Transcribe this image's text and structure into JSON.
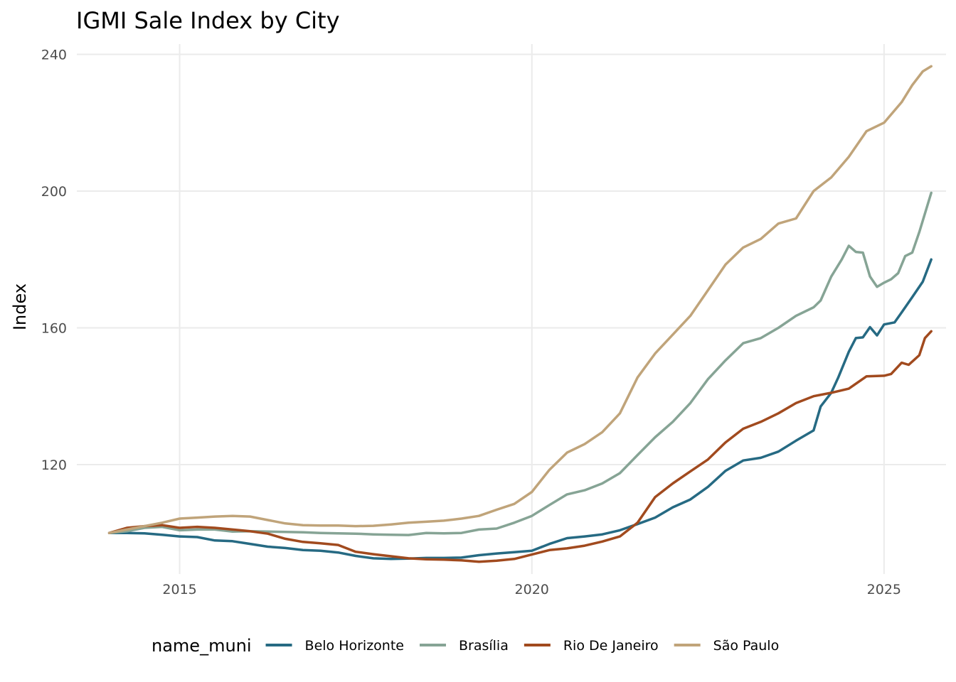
{
  "chart_data": {
    "type": "line",
    "title": "IGMI Sale Index by City",
    "xlabel": "",
    "ylabel": "Index",
    "xlim": [
      2013.54,
      2025.88
    ],
    "ylim": [
      88,
      243
    ],
    "x_ticks": [
      2015,
      2020,
      2025
    ],
    "x_tick_labels": [
      "2015",
      "2020",
      "2025"
    ],
    "y_ticks": [
      120,
      160,
      200,
      240
    ],
    "y_tick_labels": [
      "120",
      "160",
      "200",
      "240"
    ],
    "grid": true,
    "legend": {
      "title": "name_muni",
      "placement": "bottom"
    },
    "series": [
      {
        "name": "Belo Horizonte",
        "color": "#266a83",
        "points": [
          [
            2014.0,
            100.0
          ],
          [
            2014.25,
            100.0
          ],
          [
            2014.5,
            99.9
          ],
          [
            2014.75,
            99.5
          ],
          [
            2015.0,
            99.0
          ],
          [
            2015.25,
            98.8
          ],
          [
            2015.5,
            97.8
          ],
          [
            2015.75,
            97.6
          ],
          [
            2016.0,
            96.8
          ],
          [
            2016.25,
            96.0
          ],
          [
            2016.5,
            95.6
          ],
          [
            2016.75,
            95.0
          ],
          [
            2017.0,
            94.8
          ],
          [
            2017.25,
            94.3
          ],
          [
            2017.5,
            93.3
          ],
          [
            2017.75,
            92.6
          ],
          [
            2018.0,
            92.4
          ],
          [
            2018.25,
            92.5
          ],
          [
            2018.5,
            92.7
          ],
          [
            2018.75,
            92.7
          ],
          [
            2019.0,
            92.8
          ],
          [
            2019.25,
            93.5
          ],
          [
            2019.5,
            94.0
          ],
          [
            2019.75,
            94.4
          ],
          [
            2020.0,
            94.8
          ],
          [
            2020.25,
            96.8
          ],
          [
            2020.5,
            98.5
          ],
          [
            2020.75,
            99.0
          ],
          [
            2021.0,
            99.6
          ],
          [
            2021.25,
            100.8
          ],
          [
            2021.5,
            102.6
          ],
          [
            2021.75,
            104.5
          ],
          [
            2022.0,
            107.5
          ],
          [
            2022.25,
            109.8
          ],
          [
            2022.5,
            113.5
          ],
          [
            2022.75,
            118.2
          ],
          [
            2023.0,
            121.2
          ],
          [
            2023.25,
            122.0
          ],
          [
            2023.5,
            123.8
          ],
          [
            2023.75,
            127.0
          ],
          [
            2024.0,
            130.0
          ],
          [
            2024.1,
            137.0
          ],
          [
            2024.25,
            141.0
          ],
          [
            2024.35,
            145.5
          ],
          [
            2024.5,
            153.0
          ],
          [
            2024.6,
            157.0
          ],
          [
            2024.7,
            157.2
          ],
          [
            2024.8,
            160.2
          ],
          [
            2024.9,
            157.8
          ],
          [
            2025.0,
            161.0
          ],
          [
            2025.15,
            161.6
          ],
          [
            2025.25,
            164.5
          ],
          [
            2025.4,
            169.0
          ],
          [
            2025.55,
            173.5
          ],
          [
            2025.67,
            180.0
          ]
        ]
      },
      {
        "name": "Brasília",
        "color": "#86a495",
        "points": [
          [
            2014.0,
            100.0
          ],
          [
            2014.25,
            100.5
          ],
          [
            2014.5,
            101.5
          ],
          [
            2014.75,
            101.8
          ],
          [
            2015.0,
            100.8
          ],
          [
            2015.25,
            101.0
          ],
          [
            2015.5,
            101.0
          ],
          [
            2015.75,
            100.4
          ],
          [
            2016.0,
            100.5
          ],
          [
            2016.25,
            100.4
          ],
          [
            2016.5,
            100.3
          ],
          [
            2016.75,
            100.2
          ],
          [
            2017.0,
            100.0
          ],
          [
            2017.25,
            99.9
          ],
          [
            2017.5,
            99.8
          ],
          [
            2017.75,
            99.6
          ],
          [
            2018.0,
            99.5
          ],
          [
            2018.25,
            99.4
          ],
          [
            2018.5,
            100.0
          ],
          [
            2018.75,
            99.9
          ],
          [
            2019.0,
            100.0
          ],
          [
            2019.25,
            101.0
          ],
          [
            2019.5,
            101.3
          ],
          [
            2019.75,
            103.0
          ],
          [
            2020.0,
            105.0
          ],
          [
            2020.25,
            108.2
          ],
          [
            2020.5,
            111.3
          ],
          [
            2020.75,
            112.5
          ],
          [
            2021.0,
            114.5
          ],
          [
            2021.25,
            117.5
          ],
          [
            2021.5,
            122.8
          ],
          [
            2021.75,
            128.0
          ],
          [
            2022.0,
            132.5
          ],
          [
            2022.25,
            138.0
          ],
          [
            2022.5,
            145.0
          ],
          [
            2022.75,
            150.5
          ],
          [
            2023.0,
            155.5
          ],
          [
            2023.25,
            157.0
          ],
          [
            2023.5,
            160.0
          ],
          [
            2023.75,
            163.5
          ],
          [
            2024.0,
            166.0
          ],
          [
            2024.1,
            168.0
          ],
          [
            2024.25,
            175.0
          ],
          [
            2024.4,
            180.0
          ],
          [
            2024.5,
            184.0
          ],
          [
            2024.6,
            182.2
          ],
          [
            2024.7,
            182.0
          ],
          [
            2024.8,
            175.0
          ],
          [
            2024.9,
            172.0
          ],
          [
            2025.0,
            173.2
          ],
          [
            2025.1,
            174.2
          ],
          [
            2025.2,
            176.0
          ],
          [
            2025.3,
            181.0
          ],
          [
            2025.4,
            182.0
          ],
          [
            2025.5,
            188.0
          ],
          [
            2025.67,
            199.5
          ]
        ]
      },
      {
        "name": "Rio De Janeiro",
        "color": "#a14a1e",
        "points": [
          [
            2014.0,
            100.0
          ],
          [
            2014.25,
            101.5
          ],
          [
            2014.5,
            102.0
          ],
          [
            2014.75,
            102.3
          ],
          [
            2015.0,
            101.5
          ],
          [
            2015.25,
            101.8
          ],
          [
            2015.5,
            101.5
          ],
          [
            2015.75,
            101.0
          ],
          [
            2016.0,
            100.5
          ],
          [
            2016.25,
            99.8
          ],
          [
            2016.5,
            98.3
          ],
          [
            2016.75,
            97.4
          ],
          [
            2017.0,
            97.0
          ],
          [
            2017.25,
            96.5
          ],
          [
            2017.5,
            94.5
          ],
          [
            2017.75,
            93.8
          ],
          [
            2018.0,
            93.2
          ],
          [
            2018.25,
            92.6
          ],
          [
            2018.5,
            92.3
          ],
          [
            2018.75,
            92.2
          ],
          [
            2019.0,
            92.0
          ],
          [
            2019.25,
            91.6
          ],
          [
            2019.5,
            91.9
          ],
          [
            2019.75,
            92.4
          ],
          [
            2020.0,
            93.7
          ],
          [
            2020.25,
            95.0
          ],
          [
            2020.5,
            95.5
          ],
          [
            2020.75,
            96.3
          ],
          [
            2021.0,
            97.5
          ],
          [
            2021.25,
            99.0
          ],
          [
            2021.5,
            103.0
          ],
          [
            2021.75,
            110.5
          ],
          [
            2022.0,
            114.5
          ],
          [
            2022.25,
            118.0
          ],
          [
            2022.5,
            121.5
          ],
          [
            2022.75,
            126.5
          ],
          [
            2023.0,
            130.5
          ],
          [
            2023.25,
            132.5
          ],
          [
            2023.5,
            135.0
          ],
          [
            2023.75,
            138.0
          ],
          [
            2024.0,
            140.0
          ],
          [
            2024.25,
            141.0
          ],
          [
            2024.5,
            142.2
          ],
          [
            2024.75,
            145.8
          ],
          [
            2025.0,
            146.0
          ],
          [
            2025.1,
            146.5
          ],
          [
            2025.25,
            149.8
          ],
          [
            2025.35,
            149.2
          ],
          [
            2025.5,
            152.0
          ],
          [
            2025.58,
            157.0
          ],
          [
            2025.67,
            159.0
          ]
        ]
      },
      {
        "name": "São Paulo",
        "color": "#c0a47a",
        "points": [
          [
            2014.0,
            100.0
          ],
          [
            2014.25,
            101.0
          ],
          [
            2014.5,
            102.0
          ],
          [
            2014.75,
            103.0
          ],
          [
            2015.0,
            104.2
          ],
          [
            2015.25,
            104.5
          ],
          [
            2015.5,
            104.8
          ],
          [
            2015.75,
            105.0
          ],
          [
            2016.0,
            104.8
          ],
          [
            2016.25,
            103.8
          ],
          [
            2016.5,
            102.8
          ],
          [
            2016.75,
            102.3
          ],
          [
            2017.0,
            102.2
          ],
          [
            2017.25,
            102.2
          ],
          [
            2017.5,
            102.0
          ],
          [
            2017.75,
            102.1
          ],
          [
            2018.0,
            102.5
          ],
          [
            2018.25,
            103.0
          ],
          [
            2018.5,
            103.3
          ],
          [
            2018.75,
            103.6
          ],
          [
            2019.0,
            104.2
          ],
          [
            2019.25,
            105.0
          ],
          [
            2019.5,
            106.8
          ],
          [
            2019.75,
            108.5
          ],
          [
            2020.0,
            112.0
          ],
          [
            2020.25,
            118.5
          ],
          [
            2020.5,
            123.5
          ],
          [
            2020.75,
            126.0
          ],
          [
            2021.0,
            129.5
          ],
          [
            2021.25,
            135.0
          ],
          [
            2021.5,
            145.5
          ],
          [
            2021.75,
            152.5
          ],
          [
            2022.0,
            158.0
          ],
          [
            2022.25,
            163.5
          ],
          [
            2022.5,
            171.0
          ],
          [
            2022.75,
            178.5
          ],
          [
            2023.0,
            183.5
          ],
          [
            2023.25,
            186.0
          ],
          [
            2023.5,
            190.5
          ],
          [
            2023.75,
            192.0
          ],
          [
            2024.0,
            200.0
          ],
          [
            2024.25,
            204.0
          ],
          [
            2024.5,
            210.0
          ],
          [
            2024.75,
            217.5
          ],
          [
            2025.0,
            220.0
          ],
          [
            2025.25,
            226.0
          ],
          [
            2025.4,
            231.0
          ],
          [
            2025.55,
            235.0
          ],
          [
            2025.67,
            236.5
          ]
        ]
      }
    ]
  }
}
